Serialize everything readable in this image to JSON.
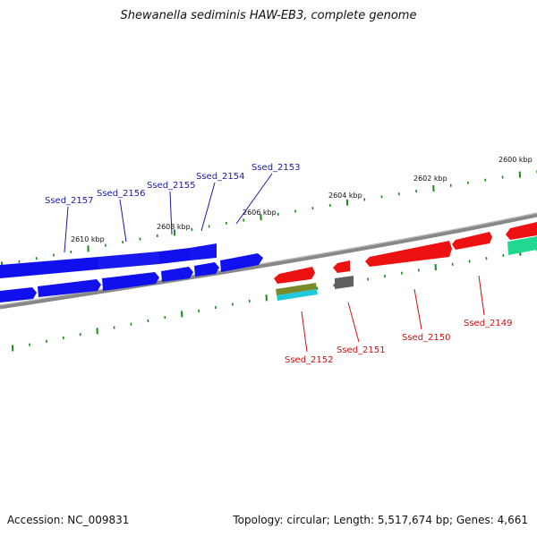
{
  "title": "Shewanella sediminis HAW-EB3, complete genome",
  "footer": {
    "accession": "Accession: NC_009831",
    "summary": "Topology: circular; Length: 5,517,674 bp; Genes: 4,661"
  },
  "colors": {
    "backbone": "#888888",
    "tick": "#1a8a1a",
    "forward_gene": "#1010ee",
    "reverse_gene": "#ee1111",
    "forward_label": "#1a1aaa",
    "reverse_label": "#cc1111"
  },
  "scale_labels": [
    {
      "text": "2600 kbp",
      "name": "kbp-2600"
    },
    {
      "text": "2602 kbp",
      "name": "kbp-2602"
    },
    {
      "text": "2604 kbp",
      "name": "kbp-2604"
    },
    {
      "text": "2606 kbp",
      "name": "kbp-2606"
    },
    {
      "text": "2608 kbp",
      "name": "kbp-2608"
    },
    {
      "text": "2610 kbp",
      "name": "kbp-2610"
    }
  ],
  "genes_forward": [
    "Ssed_2157",
    "Ssed_2156",
    "Ssed_2155",
    "Ssed_2154",
    "Ssed_2153"
  ],
  "genes_reverse": [
    "Ssed_2152",
    "Ssed_2151",
    "Ssed_2150",
    "Ssed_2149"
  ]
}
